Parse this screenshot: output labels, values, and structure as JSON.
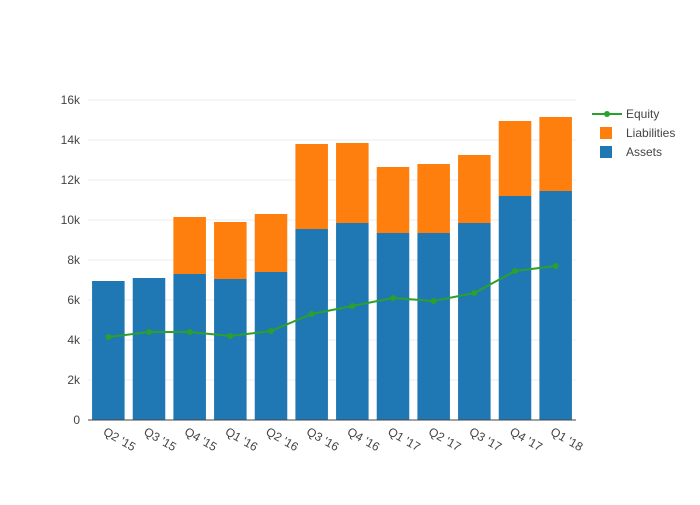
{
  "chart_data": {
    "type": "bar",
    "stacked": true,
    "categories": [
      "Q2 '15",
      "Q3 '15",
      "Q4 '15",
      "Q1 '16",
      "Q2 '16",
      "Q3 '16",
      "Q4 '16",
      "Q1 '17",
      "Q2 '17",
      "Q3 '17",
      "Q4 '17",
      "Q1 '18"
    ],
    "series": [
      {
        "name": "Assets",
        "type": "bar",
        "color": "#1f77b4",
        "values": [
          6950,
          7100,
          7300,
          7050,
          7400,
          9550,
          9850,
          9350,
          9350,
          9850,
          11200,
          11450
        ]
      },
      {
        "name": "Liabilities",
        "type": "bar",
        "color": "#ff7f0e",
        "values": [
          0,
          0,
          2850,
          2850,
          2900,
          4250,
          4000,
          3300,
          3450,
          3400,
          3750,
          3700
        ]
      },
      {
        "name": "Equity",
        "type": "line",
        "color": "#2ca02c",
        "values": [
          4150,
          4400,
          4400,
          4200,
          4450,
          5300,
          5700,
          6100,
          5950,
          6350,
          7450,
          7700
        ]
      }
    ],
    "yticks": [
      "0",
      "2k",
      "4k",
      "6k",
      "8k",
      "10k",
      "12k",
      "14k",
      "16k"
    ],
    "ytick_values": [
      0,
      2000,
      4000,
      6000,
      8000,
      10000,
      12000,
      14000,
      16000
    ],
    "ylim": [
      0,
      16000
    ],
    "grid": true,
    "legend_position": "top-right",
    "legend_order": [
      "Equity",
      "Liabilities",
      "Assets"
    ]
  }
}
